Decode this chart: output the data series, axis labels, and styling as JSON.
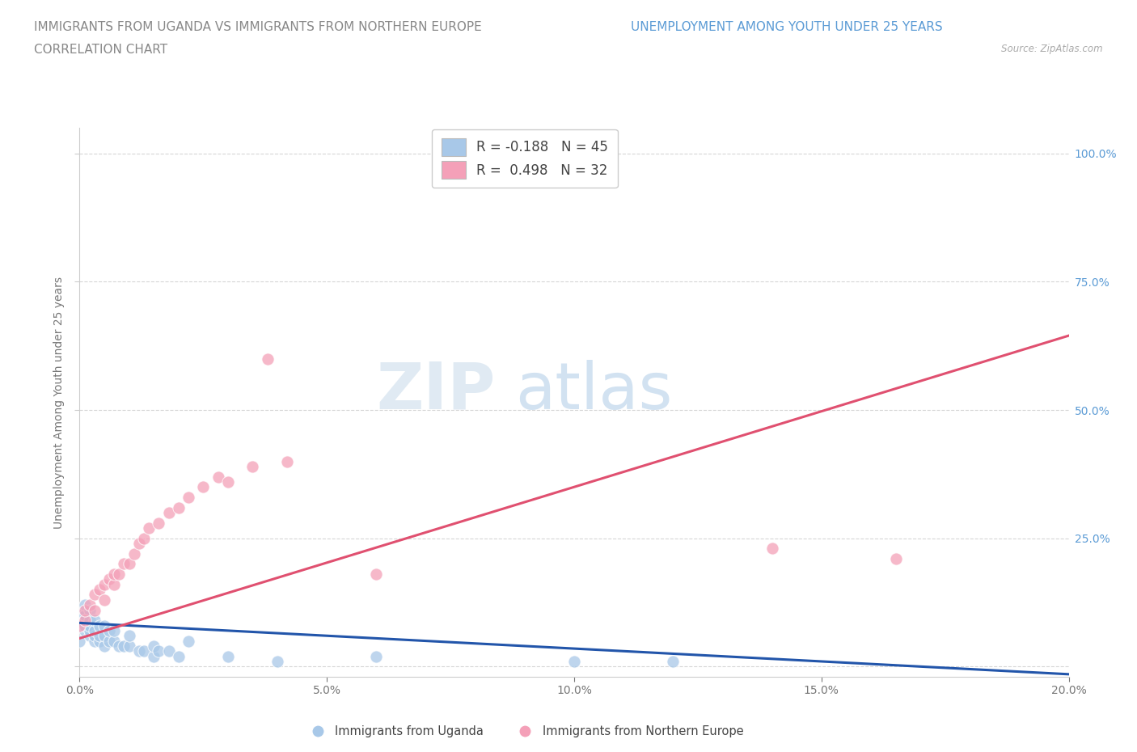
{
  "title_part1": "IMMIGRANTS FROM UGANDA VS IMMIGRANTS FROM NORTHERN EUROPE ",
  "title_part2": "UNEMPLOYMENT AMONG YOUTH UNDER 25 YEARS",
  "title_line2": "CORRELATION CHART",
  "source_text": "Source: ZipAtlas.com",
  "ylabel": "Unemployment Among Youth under 25 years",
  "xlim": [
    0.0,
    0.2
  ],
  "ylim": [
    -0.02,
    1.05
  ],
  "ytick_vals": [
    0.0,
    0.25,
    0.5,
    0.75,
    1.0
  ],
  "ytick_labels": [
    "",
    "25.0%",
    "50.0%",
    "75.0%",
    "100.0%"
  ],
  "xtick_vals": [
    0.0,
    0.05,
    0.1,
    0.15,
    0.2
  ],
  "xtick_labels": [
    "0.0%",
    "5.0%",
    "10.0%",
    "15.0%",
    "20.0%"
  ],
  "uganda_color": "#a8c8e8",
  "northern_color": "#f4a0b8",
  "uganda_line_color": "#2255aa",
  "northern_line_color": "#e05070",
  "background_color": "#ffffff",
  "grid_color": "#cccccc",
  "title_color1": "#888888",
  "title_color2": "#5b9bd5",
  "tick_color": "#5b9bd5",
  "ylabel_color": "#777777",
  "uganda_scatter_x": [
    0.0,
    0.0,
    0.0,
    0.0,
    0.001,
    0.001,
    0.001,
    0.001,
    0.001,
    0.002,
    0.002,
    0.002,
    0.002,
    0.002,
    0.003,
    0.003,
    0.003,
    0.003,
    0.004,
    0.004,
    0.004,
    0.005,
    0.005,
    0.005,
    0.006,
    0.006,
    0.007,
    0.007,
    0.008,
    0.009,
    0.01,
    0.01,
    0.012,
    0.013,
    0.015,
    0.015,
    0.016,
    0.018,
    0.02,
    0.022,
    0.03,
    0.04,
    0.06,
    0.1,
    0.12
  ],
  "uganda_scatter_y": [
    0.05,
    0.08,
    0.09,
    0.1,
    0.07,
    0.08,
    0.09,
    0.1,
    0.12,
    0.06,
    0.07,
    0.08,
    0.09,
    0.11,
    0.05,
    0.06,
    0.07,
    0.09,
    0.05,
    0.06,
    0.08,
    0.04,
    0.06,
    0.08,
    0.05,
    0.07,
    0.05,
    0.07,
    0.04,
    0.04,
    0.04,
    0.06,
    0.03,
    0.03,
    0.02,
    0.04,
    0.03,
    0.03,
    0.02,
    0.05,
    0.02,
    0.01,
    0.02,
    0.01,
    0.01
  ],
  "northern_scatter_x": [
    0.0,
    0.001,
    0.001,
    0.002,
    0.003,
    0.003,
    0.004,
    0.005,
    0.005,
    0.006,
    0.007,
    0.007,
    0.008,
    0.009,
    0.01,
    0.011,
    0.012,
    0.013,
    0.014,
    0.016,
    0.018,
    0.02,
    0.022,
    0.025,
    0.028,
    0.03,
    0.035,
    0.038,
    0.042,
    0.06,
    0.14,
    0.165
  ],
  "northern_scatter_y": [
    0.08,
    0.09,
    0.11,
    0.12,
    0.11,
    0.14,
    0.15,
    0.13,
    0.16,
    0.17,
    0.16,
    0.18,
    0.18,
    0.2,
    0.2,
    0.22,
    0.24,
    0.25,
    0.27,
    0.28,
    0.3,
    0.31,
    0.33,
    0.35,
    0.37,
    0.36,
    0.39,
    0.6,
    0.4,
    0.18,
    0.23,
    0.21
  ],
  "uganda_line_x": [
    0.0,
    0.2
  ],
  "uganda_line_y": [
    0.085,
    -0.015
  ],
  "northern_line_x": [
    0.0,
    0.2
  ],
  "northern_line_y": [
    0.055,
    0.645
  ]
}
